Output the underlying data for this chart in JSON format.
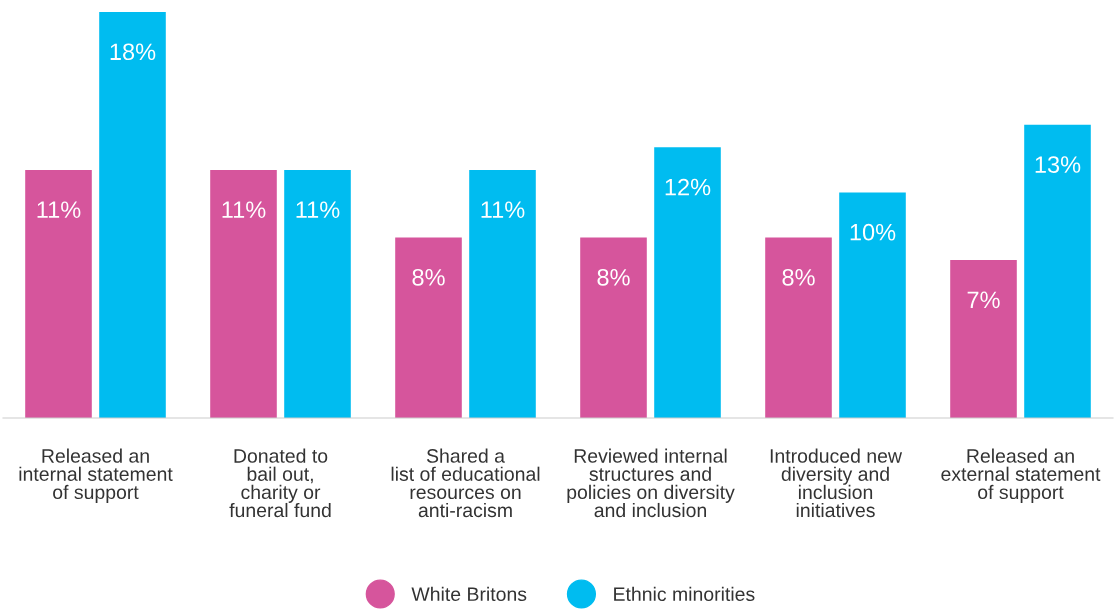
{
  "chart_data": {
    "type": "bar",
    "categories": [
      "Released an\ninternal statement\nof support",
      "Donated to\nbail out,\ncharity or\nfuneral fund",
      "Shared a\nlist of educational\nresources on\nanti-racism",
      "Reviewed internal\nstructures and\npolicies on diversity\nand inclusion",
      "Introduced new\ndiversity and\ninclusion\ninitiatives",
      "Released an\nexternal statement\nof support"
    ],
    "series": [
      {
        "name": "White Britons",
        "color": "#d6559c",
        "values": [
          11,
          11,
          8,
          8,
          8,
          7
        ],
        "value_labels": [
          "11%",
          "11%",
          "8%",
          "8%",
          "8%",
          "7%"
        ]
      },
      {
        "name": "Ethnic minorities",
        "color": "#00bcf0",
        "values": [
          18,
          11,
          11,
          12,
          10,
          13
        ],
        "value_labels": [
          "18%",
          "11%",
          "11%",
          "12%",
          "10%",
          "13%"
        ]
      }
    ],
    "ylim": [
      0,
      18
    ],
    "grid": false,
    "legend": "bottom",
    "tick_labels": "x"
  }
}
